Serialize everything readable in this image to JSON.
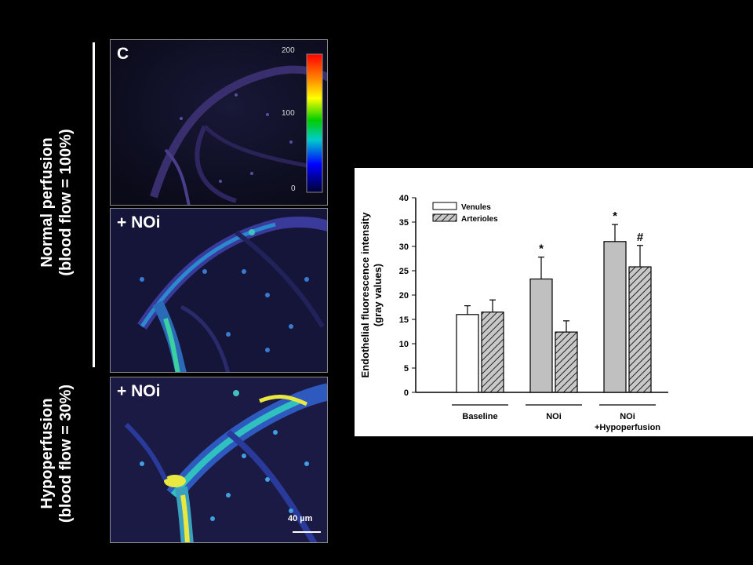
{
  "left_labels": {
    "normal": [
      "Normal perfusion",
      "(blood flow = 100%)"
    ],
    "hypo": [
      "Hypoperfusion",
      "(blood flow = 30%)"
    ]
  },
  "panels": [
    {
      "label": "C"
    },
    {
      "label": "+ NOi"
    },
    {
      "label": "+ NOi"
    }
  ],
  "colorbar": {
    "ticks": [
      "200",
      "100",
      "0"
    ]
  },
  "scale_bar": {
    "label": "40 µm"
  },
  "chart_data": {
    "type": "bar",
    "categories": [
      "Baseline",
      "NOi",
      "NOi +Hypoperfusion"
    ],
    "category_labels": [
      [
        "Baseline"
      ],
      [
        "NOi"
      ],
      [
        "NOi",
        "+Hypoperfusion"
      ]
    ],
    "series": [
      {
        "name": "Venules",
        "values": [
          16.0,
          23.3,
          31.0
        ],
        "errors": [
          1.8,
          4.5,
          3.5
        ]
      },
      {
        "name": "Arterioles",
        "values": [
          16.5,
          12.4,
          25.8
        ],
        "errors": [
          2.5,
          2.3,
          4.4
        ]
      }
    ],
    "annotations": [
      {
        "category": 1,
        "series": 0,
        "text": "*"
      },
      {
        "category": 2,
        "series": 0,
        "text": "*"
      },
      {
        "category": 2,
        "series": 1,
        "text": "#"
      }
    ],
    "ylabel": [
      "Endothelial fluorescence intensity",
      "(gray values)"
    ],
    "yticks": [
      "0",
      "5",
      "10",
      "15",
      "20",
      "25",
      "30",
      "35",
      "40"
    ],
    "ylim": [
      0,
      40
    ],
    "legend_position": "top-left",
    "colors": {
      "venules_baseline": "#ffffff",
      "venules_treated": "#c0c0c0",
      "arterioles": "#c8c8c8"
    }
  }
}
